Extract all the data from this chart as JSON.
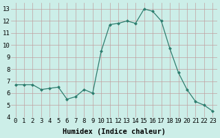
{
  "x": [
    0,
    1,
    2,
    3,
    4,
    5,
    6,
    7,
    8,
    9,
    10,
    11,
    12,
    13,
    14,
    15,
    16,
    17,
    18,
    19,
    20,
    21,
    22,
    23
  ],
  "y": [
    6.7,
    6.7,
    6.7,
    6.3,
    6.4,
    6.5,
    5.5,
    5.7,
    6.3,
    6.0,
    9.5,
    11.7,
    11.8,
    12.0,
    11.8,
    13.0,
    12.8,
    12.0,
    9.7,
    7.7,
    6.3,
    5.3,
    5.0,
    4.5
  ],
  "line_color": "#2d7d6e",
  "marker": "D",
  "marker_size": 2.0,
  "bg_color": "#cceee8",
  "grid_color": "#c0a0a0",
  "xlabel": "Humidex (Indice chaleur)",
  "ylim": [
    4,
    13.5
  ],
  "xlim": [
    -0.5,
    23.5
  ],
  "yticks": [
    4,
    5,
    6,
    7,
    8,
    9,
    10,
    11,
    12,
    13
  ],
  "xticks": [
    0,
    1,
    2,
    3,
    4,
    5,
    6,
    7,
    8,
    9,
    10,
    11,
    12,
    13,
    14,
    15,
    16,
    17,
    18,
    19,
    20,
    21,
    22,
    23
  ],
  "tick_fontsize": 6.5,
  "xlabel_fontsize": 7.5
}
